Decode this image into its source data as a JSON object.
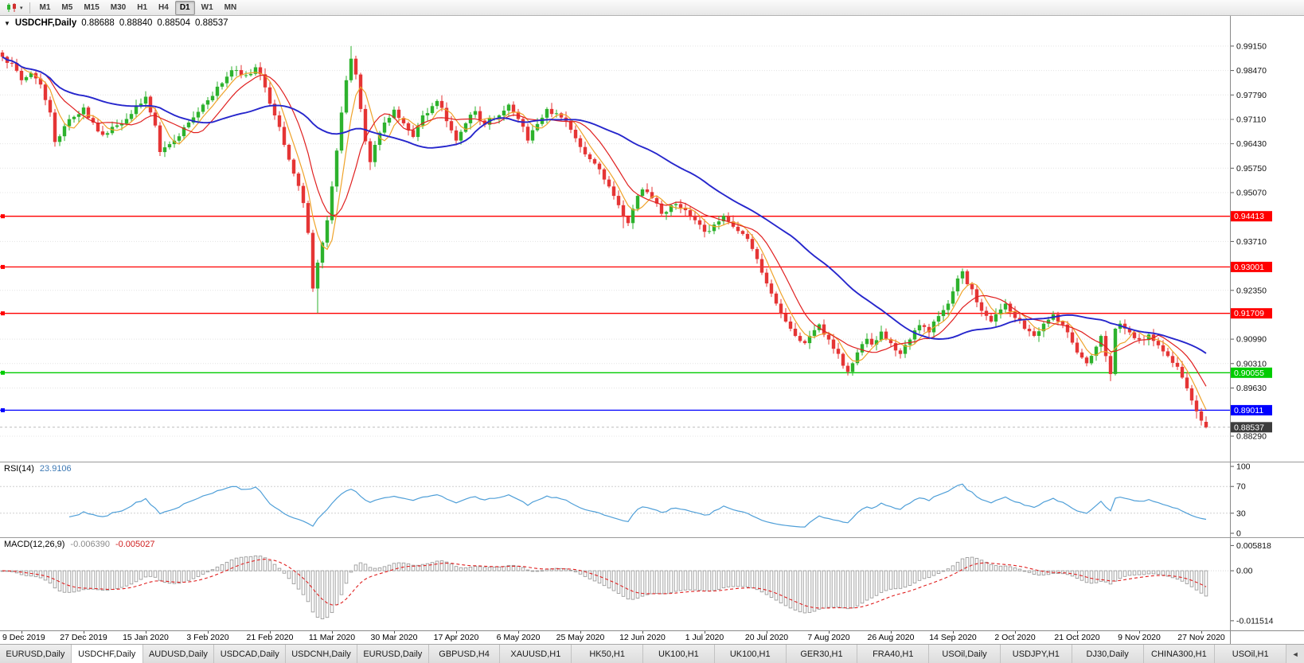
{
  "toolbar": {
    "dropdown_glyph": "▾",
    "timeframes": [
      {
        "label": "M1",
        "active": false
      },
      {
        "label": "M5",
        "active": false
      },
      {
        "label": "M15",
        "active": false
      },
      {
        "label": "M30",
        "active": false
      },
      {
        "label": "H1",
        "active": false
      },
      {
        "label": "H4",
        "active": false
      },
      {
        "label": "D1",
        "active": true
      },
      {
        "label": "W1",
        "active": false
      },
      {
        "label": "MN",
        "active": false
      }
    ]
  },
  "chart": {
    "menu_arrow": "▼",
    "symbol": "USDCHF,Daily",
    "open": "0.88688",
    "high": "0.88840",
    "low": "0.88504",
    "close": "0.88537"
  },
  "price_axis": {
    "ticks": [
      "0.99150",
      "0.98470",
      "0.97790",
      "0.97110",
      "0.96430",
      "0.95750",
      "0.95070",
      "0.93710",
      "0.92350",
      "0.90990",
      "0.90310",
      "0.89630",
      "0.88290"
    ],
    "levels": [
      {
        "label": "0.94413",
        "price": 0.94413,
        "color": "#ff0000",
        "kind": "resistance-line"
      },
      {
        "label": "0.93001",
        "price": 0.93001,
        "color": "#ff0000",
        "kind": "resistance-line"
      },
      {
        "label": "0.91709",
        "price": 0.91709,
        "color": "#ff0000",
        "kind": "resistance-line"
      },
      {
        "label": "0.90055",
        "price": 0.90055,
        "color": "#00cc00",
        "kind": "support-line"
      },
      {
        "label": "0.89011",
        "price": 0.89011,
        "color": "#0000ff",
        "kind": "support-line"
      }
    ],
    "current": {
      "label": "0.88537",
      "price": 0.88537,
      "bg": "#3c3c3c"
    }
  },
  "rsi": {
    "label": "RSI(14)",
    "value": "23.9106",
    "period": 14,
    "ticks": [
      100,
      70,
      30,
      0
    ],
    "levels": [
      70,
      30
    ]
  },
  "macd": {
    "label": "MACD(12,26,9)",
    "value_main": "-0.006390",
    "value_signal": "-0.005027",
    "ticks": [
      "0.005818",
      "0.00",
      "-0.011514"
    ]
  },
  "date_axis": {
    "labels": [
      "9 Dec 2019",
      "27 Dec 2019",
      "15 Jan 2020",
      "3 Feb 2020",
      "21 Feb 2020",
      "11 Mar 2020",
      "30 Mar 2020",
      "17 Apr 2020",
      "6 May 2020",
      "25 May 2020",
      "12 Jun 2020",
      "1 Jul 2020",
      "20 Jul 2020",
      "7 Aug 2020",
      "26 Aug 2020",
      "14 Sep 2020",
      "2 Oct 2020",
      "21 Oct 2020",
      "9 Nov 2020",
      "27 Nov 2020"
    ]
  },
  "tabs": {
    "nav_glyph": "◄",
    "items": [
      {
        "label": "EURUSD,Daily",
        "active": false
      },
      {
        "label": "USDCHF,Daily",
        "active": true
      },
      {
        "label": "AUDUSD,Daily",
        "active": false
      },
      {
        "label": "USDCAD,Daily",
        "active": false
      },
      {
        "label": "USDCNH,Daily",
        "active": false
      },
      {
        "label": "EURUSD,Daily",
        "active": false
      },
      {
        "label": "GBPUSD,H4",
        "active": false
      },
      {
        "label": "XAUUSD,H1",
        "active": false
      },
      {
        "label": "HK50,H1",
        "active": false
      },
      {
        "label": "UK100,H1",
        "active": false
      },
      {
        "label": "UK100,H1",
        "active": false
      },
      {
        "label": "GER30,H1",
        "active": false
      },
      {
        "label": "FRA40,H1",
        "active": false
      },
      {
        "label": "USOil,Daily",
        "active": false
      },
      {
        "label": "USDJPY,H1",
        "active": false
      },
      {
        "label": "DJ30,Daily",
        "active": false
      },
      {
        "label": "CHINA300,H1",
        "active": false
      },
      {
        "label": "USOil,H1",
        "active": false
      }
    ]
  },
  "colors": {
    "up": "#2db22d",
    "down": "#e53535",
    "ma_fast": "#efa32a",
    "ma_mid": "#e02020",
    "ma_slow": "#2626cc",
    "rsi_line": "#4f9fd8",
    "macd_hist": "#9b9b9b",
    "macd_signal": "#e02020",
    "grid": "#e4e4e4"
  },
  "chart_data": {
    "type": "candlestick",
    "symbol": "USDCHF",
    "timeframe": "Daily",
    "bars_total": 253,
    "y_min": 0.8758,
    "y_max": 0.9999,
    "y_ticks": [
      0.9915,
      0.9847,
      0.9779,
      0.9711,
      0.9643,
      0.9575,
      0.9507,
      0.9371,
      0.9235,
      0.9099,
      0.9031,
      0.8963,
      0.8829
    ],
    "x_labels": [
      "9 Dec 2019",
      "27 Dec 2019",
      "15 Jan 2020",
      "3 Feb 2020",
      "21 Feb 2020",
      "11 Mar 2020",
      "30 Mar 2020",
      "17 Apr 2020",
      "6 May 2020",
      "25 May 2020",
      "12 Jun 2020",
      "1 Jul 2020",
      "20 Jul 2020",
      "7 Aug 2020",
      "26 Aug 2020",
      "14 Sep 2020",
      "2 Oct 2020",
      "21 Oct 2020",
      "9 Nov 2020",
      "27 Nov 2020"
    ],
    "last_bar": {
      "open": 0.88688,
      "high": 0.8884,
      "low": 0.88504,
      "close": 0.88537
    },
    "horizontal_levels": [
      0.94413,
      0.93001,
      0.91709,
      0.90055,
      0.89011
    ],
    "moving_averages": [
      {
        "period": 5,
        "color_key": "ma_fast"
      },
      {
        "period": 10,
        "color_key": "ma_mid"
      },
      {
        "period": 34,
        "color_key": "ma_slow"
      }
    ],
    "indicators": {
      "rsi": {
        "period": 14,
        "last_value": 23.9106
      },
      "macd": {
        "fast": 12,
        "slow": 26,
        "signal": 9,
        "last_main": -0.00639,
        "last_signal": -0.005027
      }
    },
    "price_anchors": [
      [
        0,
        0.9885
      ],
      [
        2,
        0.9868
      ],
      [
        4,
        0.982
      ],
      [
        6,
        0.984
      ],
      [
        8,
        0.9808
      ],
      [
        10,
        0.973
      ],
      [
        11,
        0.9648
      ],
      [
        13,
        0.9692
      ],
      [
        15,
        0.9718
      ],
      [
        17,
        0.9744
      ],
      [
        19,
        0.9702
      ],
      [
        21,
        0.9668
      ],
      [
        23,
        0.969
      ],
      [
        26,
        0.9712
      ],
      [
        28,
        0.975
      ],
      [
        30,
        0.9774
      ],
      [
        32,
        0.9694
      ],
      [
        33,
        0.962
      ],
      [
        35,
        0.9642
      ],
      [
        37,
        0.9664
      ],
      [
        39,
        0.9702
      ],
      [
        41,
        0.9732
      ],
      [
        43,
        0.9764
      ],
      [
        45,
        0.9802
      ],
      [
        47,
        0.983
      ],
      [
        49,
        0.9848
      ],
      [
        51,
        0.9834
      ],
      [
        53,
        0.9856
      ],
      [
        55,
        0.98
      ],
      [
        57,
        0.9722
      ],
      [
        59,
        0.964
      ],
      [
        61,
        0.956
      ],
      [
        63,
        0.9478
      ],
      [
        64,
        0.9395
      ],
      [
        65,
        0.924
      ],
      [
        66,
        0.9312
      ],
      [
        67,
        0.9368
      ],
      [
        68,
        0.943
      ],
      [
        69,
        0.9524
      ],
      [
        70,
        0.9624
      ],
      [
        71,
        0.973
      ],
      [
        72,
        0.982
      ],
      [
        73,
        0.988
      ],
      [
        74,
        0.9836
      ],
      [
        75,
        0.974
      ],
      [
        76,
        0.965
      ],
      [
        77,
        0.9592
      ],
      [
        78,
        0.964
      ],
      [
        80,
        0.9702
      ],
      [
        82,
        0.9738
      ],
      [
        84,
        0.97
      ],
      [
        86,
        0.9662
      ],
      [
        88,
        0.9722
      ],
      [
        90,
        0.9748
      ],
      [
        91,
        0.9762
      ],
      [
        93,
        0.9706
      ],
      [
        95,
        0.9652
      ],
      [
        97,
        0.97
      ],
      [
        99,
        0.9734
      ],
      [
        101,
        0.9696
      ],
      [
        103,
        0.9714
      ],
      [
        104,
        0.9722
      ],
      [
        106,
        0.9752
      ],
      [
        108,
        0.9712
      ],
      [
        110,
        0.9652
      ],
      [
        112,
        0.9698
      ],
      [
        114,
        0.974
      ],
      [
        116,
        0.9728
      ],
      [
        117,
        0.9716
      ],
      [
        119,
        0.9682
      ],
      [
        121,
        0.9634
      ],
      [
        123,
        0.96
      ],
      [
        125,
        0.9572
      ],
      [
        127,
        0.9524
      ],
      [
        129,
        0.9472
      ],
      [
        130,
        0.944
      ],
      [
        131,
        0.9422
      ],
      [
        132,
        0.9462
      ],
      [
        134,
        0.9516
      ],
      [
        136,
        0.9492
      ],
      [
        138,
        0.9448
      ],
      [
        140,
        0.9472
      ],
      [
        143,
        0.9458
      ],
      [
        145,
        0.943
      ],
      [
        147,
        0.9398
      ],
      [
        149,
        0.9418
      ],
      [
        151,
        0.9442
      ],
      [
        153,
        0.9412
      ],
      [
        155,
        0.9392
      ],
      [
        156,
        0.9378
      ],
      [
        157,
        0.935
      ],
      [
        158,
        0.9322
      ],
      [
        159,
        0.9284
      ],
      [
        160,
        0.9254
      ],
      [
        161,
        0.9226
      ],
      [
        162,
        0.9198
      ],
      [
        163,
        0.917
      ],
      [
        164,
        0.9148
      ],
      [
        165,
        0.9128
      ],
      [
        166,
        0.9108
      ],
      [
        167,
        0.9094
      ],
      [
        168,
        0.9088
      ],
      [
        169,
        0.9108
      ],
      [
        171,
        0.914
      ],
      [
        173,
        0.9098
      ],
      [
        175,
        0.9058
      ],
      [
        177,
        0.9008
      ],
      [
        178,
        0.9032
      ],
      [
        179,
        0.9062
      ],
      [
        181,
        0.91
      ],
      [
        182,
        0.9084
      ],
      [
        184,
        0.912
      ],
      [
        186,
        0.9088
      ],
      [
        188,
        0.9058
      ],
      [
        190,
        0.9098
      ],
      [
        192,
        0.9138
      ],
      [
        194,
        0.9118
      ],
      [
        195,
        0.9148
      ],
      [
        197,
        0.918
      ],
      [
        199,
        0.9232
      ],
      [
        200,
        0.9268
      ],
      [
        201,
        0.9288
      ],
      [
        202,
        0.9252
      ],
      [
        203,
        0.9238
      ],
      [
        205,
        0.9178
      ],
      [
        207,
        0.9148
      ],
      [
        208,
        0.9168
      ],
      [
        210,
        0.9198
      ],
      [
        212,
        0.9158
      ],
      [
        214,
        0.9128
      ],
      [
        216,
        0.9108
      ],
      [
        218,
        0.9142
      ],
      [
        220,
        0.9168
      ],
      [
        221,
        0.9148
      ],
      [
        223,
        0.9118
      ],
      [
        225,
        0.9062
      ],
      [
        227,
        0.9032
      ],
      [
        229,
        0.9078
      ],
      [
        230,
        0.9108
      ],
      [
        231,
        0.9052
      ],
      [
        232,
        0.9002
      ],
      [
        233,
        0.9128
      ],
      [
        234,
        0.9142
      ],
      [
        236,
        0.9118
      ],
      [
        238,
        0.9098
      ],
      [
        240,
        0.9112
      ],
      [
        242,
        0.9082
      ],
      [
        244,
        0.9052
      ],
      [
        246,
        0.9022
      ],
      [
        247,
        0.8992
      ],
      [
        248,
        0.8962
      ],
      [
        249,
        0.8928
      ],
      [
        250,
        0.8898
      ],
      [
        251,
        0.8872
      ],
      [
        252,
        0.88537
      ]
    ],
    "wick_overrides": {
      "11": {
        "low": 0.9635
      },
      "53": {
        "high": 0.9865
      },
      "66": {
        "low": 0.9172
      },
      "73": {
        "high": 0.9915
      },
      "77": {
        "low": 0.957
      },
      "130": {
        "low": 0.9408
      },
      "177": {
        "low": 0.8998
      },
      "201": {
        "high": 0.9296
      },
      "232": {
        "low": 0.8982
      },
      "250": {
        "low": 0.8878
      }
    }
  }
}
